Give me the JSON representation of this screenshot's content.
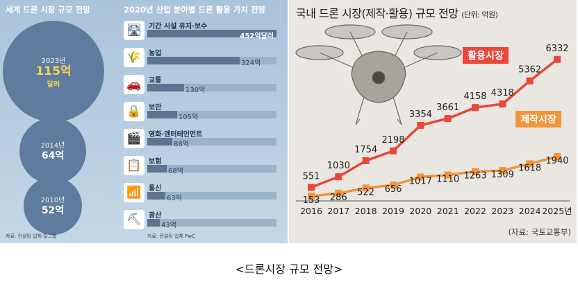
{
  "left": {
    "title": "세계 드론 시장 규모 전망",
    "source": "자료: 컨설팅 업체 틸그룹",
    "circles": [
      {
        "year": "2023년",
        "value": "115억",
        "unit": "달러"
      },
      {
        "year": "2014년",
        "value": "64억",
        "unit": ""
      },
      {
        "year": "2010년",
        "value": "52억",
        "unit": ""
      }
    ]
  },
  "middle": {
    "title": "2020년 산업 분야별 드론 활용 가치 전망",
    "source": "자료: 컨설팅 업체 PwC",
    "rows": [
      {
        "label": "기간 시설 유지·보수",
        "value": 452,
        "display": "452억달러",
        "icon": "road-icon",
        "glyph": "🛣"
      },
      {
        "label": "농업",
        "value": 324,
        "display": "324억",
        "icon": "wheat-icon",
        "glyph": "🌾"
      },
      {
        "label": "교통",
        "value": 130,
        "display": "130억",
        "icon": "car-icon",
        "glyph": "🚗"
      },
      {
        "label": "보안",
        "value": 105,
        "display": "105억",
        "icon": "lock-icon",
        "glyph": "🔒"
      },
      {
        "label": "영화·엔터테인먼트",
        "value": 88,
        "display": "88억",
        "icon": "clapperboard-icon",
        "glyph": "🎬"
      },
      {
        "label": "보험",
        "value": 68,
        "display": "68억",
        "icon": "document-icon",
        "glyph": "📋"
      },
      {
        "label": "통신",
        "value": 63,
        "display": "63억",
        "icon": "signal-icon",
        "glyph": "📶"
      },
      {
        "label": "광산",
        "value": 43,
        "display": "43억",
        "icon": "mining-cart-icon",
        "glyph": "⛏"
      }
    ]
  },
  "right": {
    "title": "국내 드론 시장(제작·활용) 규모 전망",
    "unit": "(단위: 억원)",
    "source": "(자료: 국토교통부)"
  },
  "caption": "<드론시장 규모 전망>",
  "chart_data": {
    "type": "line",
    "title": "국내 드론 시장(제작·활용) 규모 전망",
    "unit": "(단위: 억원)",
    "x": [
      "2016",
      "2017",
      "2018",
      "2019",
      "2020",
      "2021",
      "2022",
      "2023",
      "2024",
      "2025년"
    ],
    "series": [
      {
        "name": "활용시장",
        "color": "#e8473a",
        "values": [
          551,
          1030,
          1754,
          2198,
          3354,
          3661,
          4158,
          4318,
          5362,
          6332
        ]
      },
      {
        "name": "제작시장",
        "color": "#f0953a",
        "values": [
          153,
          286,
          522,
          656,
          1017,
          1110,
          1263,
          1309,
          1618,
          1940
        ]
      }
    ]
  }
}
